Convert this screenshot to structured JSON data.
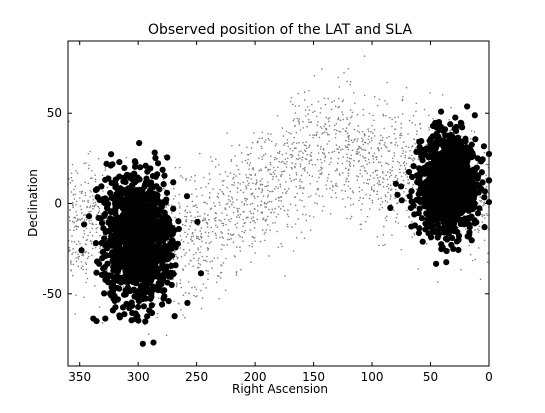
{
  "chart_data": {
    "type": "scatter",
    "title": "Observed position of the LAT and SLA",
    "xlabel": "Right Ascension",
    "ylabel": "Declination",
    "xlim": [
      360,
      0
    ],
    "ylim": [
      -90,
      90
    ],
    "x_ticks": [
      350,
      300,
      250,
      200,
      150,
      100,
      50,
      0
    ],
    "y_ticks": [
      50,
      0,
      -50
    ],
    "grid": false,
    "legend": "none",
    "series": [
      {
        "style": "small-gray-dots",
        "color": "#808080",
        "description_points": [
          [
            360,
            -10
          ],
          [
            340,
            -10
          ],
          [
            320,
            -20
          ],
          [
            300,
            -25
          ],
          [
            280,
            -25
          ],
          [
            260,
            -20
          ],
          [
            240,
            -15
          ],
          [
            220,
            -5
          ],
          [
            200,
            5
          ],
          [
            180,
            15
          ],
          [
            160,
            25
          ],
          [
            140,
            30
          ],
          [
            120,
            30
          ],
          [
            100,
            25
          ],
          [
            80,
            20
          ],
          [
            60,
            15
          ],
          [
            40,
            10
          ],
          [
            20,
            5
          ],
          [
            0,
            -5
          ]
        ],
        "spread": 18
      },
      {
        "style": "large-black-dots",
        "color": "#000000",
        "clusters": [
          {
            "center": [
              300,
              -20
            ],
            "x_spread": 15,
            "y_spread": 18
          },
          {
            "center": [
              35,
              10
            ],
            "x_spread": 12,
            "y_spread": 14
          }
        ]
      }
    ]
  }
}
